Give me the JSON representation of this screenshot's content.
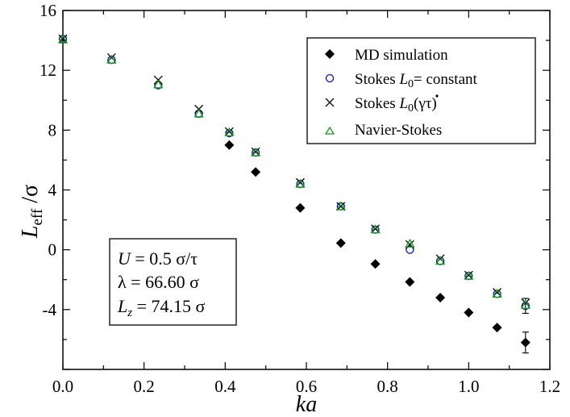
{
  "chart_data": {
    "type": "scatter",
    "xlabel": "ka",
    "ylabel_main": "L",
    "ylabel_sub": "eff",
    "ylabel_tail": " /σ",
    "xlim": [
      0,
      1.2
    ],
    "ylim": [
      -8,
      16
    ],
    "x_ticks": [
      "0.0",
      "0.2",
      "0.4",
      "0.6",
      "0.8",
      "1.0",
      "1.2"
    ],
    "y_ticks": [
      "16",
      "12",
      "8",
      "4",
      "0",
      "-4"
    ],
    "y_tick_values": [
      16,
      12,
      8,
      4,
      0,
      -4
    ],
    "x_tick_values": [
      0,
      0.2,
      0.4,
      0.6,
      0.8,
      1.0,
      1.2
    ],
    "legend_position": "top-right",
    "series": [
      {
        "name": "MD simulation",
        "marker": "diamond",
        "color": "#000000",
        "x": [
          0.41,
          0.475,
          0.585,
          0.685,
          0.77,
          0.855,
          0.93,
          1.0,
          1.07,
          1.14
        ],
        "y": [
          7.0,
          5.2,
          2.8,
          0.45,
          -0.95,
          -2.15,
          -3.2,
          -4.2,
          -5.2,
          -6.2
        ],
        "err": [
          0,
          0,
          0,
          0,
          0,
          0,
          0,
          0,
          0,
          0.7
        ]
      },
      {
        "name": "Stokes L0= constant",
        "marker": "circle",
        "color": "#1010c8",
        "x": [
          0.0,
          0.12,
          0.235,
          0.335,
          0.41,
          0.475,
          0.585,
          0.685,
          0.77,
          0.855,
          0.93,
          1.0,
          1.07,
          1.14
        ],
        "y": [
          14.1,
          12.7,
          11.0,
          9.1,
          7.8,
          6.5,
          4.4,
          2.9,
          1.35,
          0.0,
          -0.75,
          -1.75,
          -2.95,
          -3.75
        ],
        "err": [
          0,
          0,
          0,
          0,
          0,
          0,
          0,
          0,
          0,
          0,
          0,
          0,
          0,
          0.5
        ]
      },
      {
        "name": "Stokes L0(γτ)",
        "marker": "cross",
        "color": "#000000",
        "x": [
          0.0,
          0.12,
          0.235,
          0.335,
          0.41,
          0.475,
          0.585,
          0.685,
          0.77,
          0.855,
          0.93,
          1.0,
          1.07,
          1.14
        ],
        "y": [
          14.1,
          12.85,
          11.35,
          9.4,
          7.9,
          6.55,
          4.5,
          2.9,
          1.4,
          0.35,
          -0.6,
          -1.7,
          -2.85,
          -3.55
        ],
        "err": [
          0,
          0,
          0,
          0,
          0,
          0,
          0,
          0,
          0,
          0,
          0,
          0,
          0,
          0
        ]
      },
      {
        "name": "Navier-Stokes",
        "marker": "triangle",
        "color": "#10a010",
        "x": [
          0.0,
          0.12,
          0.235,
          0.335,
          0.41,
          0.475,
          0.585,
          0.685,
          0.77,
          0.855,
          0.93,
          1.0,
          1.07,
          1.14
        ],
        "y": [
          14.05,
          12.7,
          11.05,
          9.1,
          7.85,
          6.5,
          4.4,
          2.9,
          1.35,
          0.4,
          -0.75,
          -1.75,
          -2.95,
          -3.7
        ],
        "err": [
          0,
          0,
          0,
          0,
          0,
          0,
          0,
          0,
          0,
          0,
          0,
          0,
          0,
          0
        ]
      }
    ]
  },
  "legend": {
    "md": "MD simulation",
    "stokes_const_prefix": "Stokes ",
    "stokes_const_L": "L",
    "stokes_const_sub": "0",
    "stokes_const_suffix": "= constant",
    "stokes_gamma_prefix": "Stokes ",
    "stokes_gamma_L": "L",
    "stokes_gamma_sub": "0",
    "stokes_gamma_open": "(",
    "stokes_gamma_gamma": "γ",
    "stokes_gamma_tau": "τ)",
    "navier": "Navier-Stokes"
  },
  "annotation": {
    "line1_var": "U",
    "line1_rest": " = 0.5 σ/τ",
    "line2": "λ = 66.60 σ",
    "line3_var": "L",
    "line3_sub": "z",
    "line3_rest": " = 74.15 σ"
  }
}
